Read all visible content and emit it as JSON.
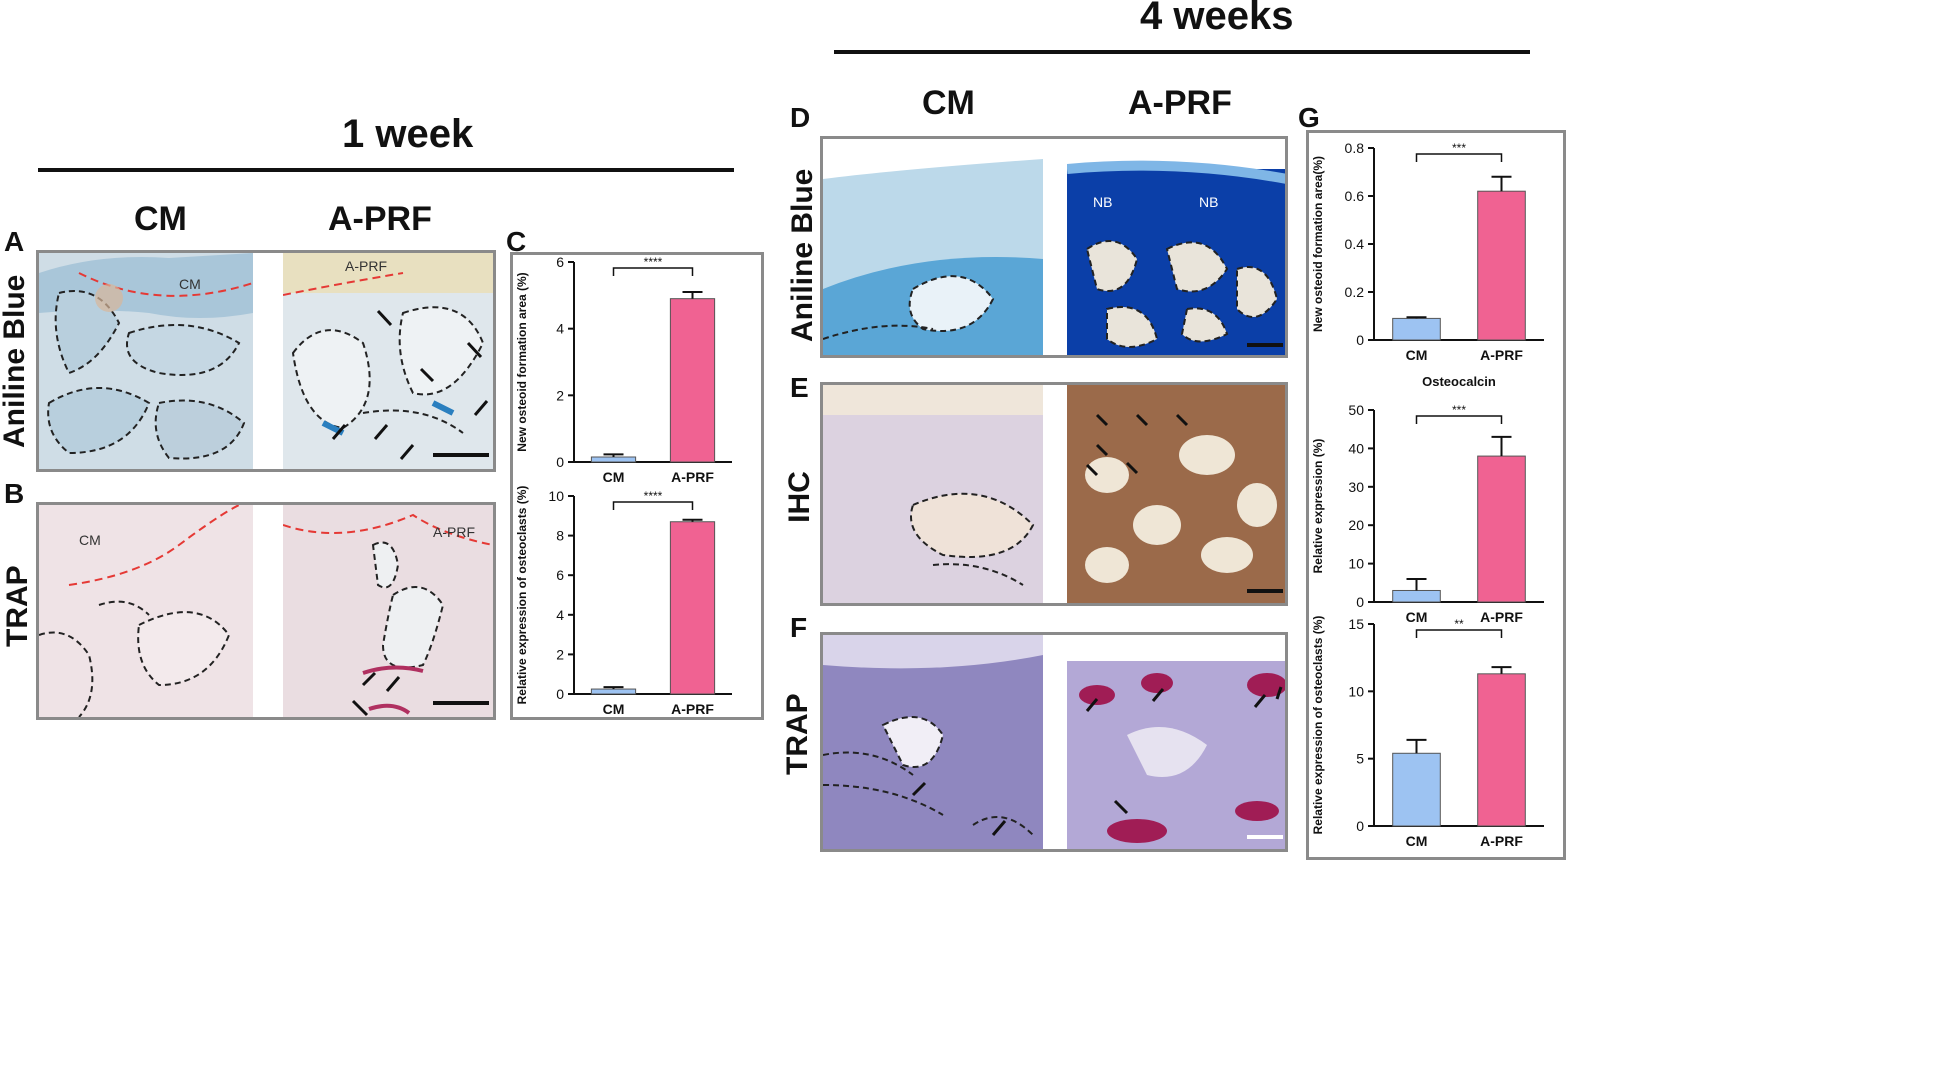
{
  "headers": {
    "week1": "1  week",
    "week4": "4  weeks"
  },
  "columns": {
    "cm": "CM",
    "aprf": "A-PRF"
  },
  "panels": {
    "A": "A",
    "B": "B",
    "C": "C",
    "D": "D",
    "E": "E",
    "F": "F",
    "G": "G"
  },
  "rows": {
    "aniline": "Aniline Blue",
    "trap": "TRAP",
    "ihc": "IHC"
  },
  "image_labels": {
    "cm": "CM",
    "aprf": "A-PRF",
    "nb": "NB"
  },
  "colors": {
    "cm_bar": "#9dc3f2",
    "aprf_bar": "#f06292",
    "frame": "#8a8a8a",
    "aniline": "#2a7fbf",
    "trap": "#b03060",
    "ihc": "#8b5a3c"
  },
  "chart_data": [
    {
      "id": "C-top",
      "type": "bar",
      "categories": [
        "CM",
        "A-PRF"
      ],
      "values": [
        0.15,
        4.9
      ],
      "errors": [
        0.08,
        0.2
      ],
      "ylabel": "New osteoid formation area (%)",
      "xlabel": "",
      "ylim": [
        0,
        6
      ],
      "yticks": [
        0,
        2,
        4,
        6
      ],
      "significance": "****",
      "title": ""
    },
    {
      "id": "C-bottom",
      "type": "bar",
      "categories": [
        "CM",
        "A-PRF"
      ],
      "values": [
        0.25,
        8.7
      ],
      "errors": [
        0.1,
        0.1
      ],
      "ylabel": "Relative expression of osteoclasts (%)",
      "xlabel": "",
      "ylim": [
        0,
        10
      ],
      "yticks": [
        0,
        2,
        4,
        6,
        8,
        10
      ],
      "significance": "****",
      "title": ""
    },
    {
      "id": "G-top",
      "type": "bar",
      "categories": [
        "CM",
        "A-PRF"
      ],
      "values": [
        0.09,
        0.62
      ],
      "errors": [
        0.005,
        0.06
      ],
      "ylabel": "New osteoid formation area(%)",
      "xlabel": "",
      "ylim": [
        0,
        0.8
      ],
      "yticks": [
        0,
        0.2,
        0.4,
        0.6,
        0.8
      ],
      "significance": "***",
      "title": ""
    },
    {
      "id": "G-mid",
      "type": "bar",
      "categories": [
        "CM",
        "A-PRF"
      ],
      "values": [
        3,
        38
      ],
      "errors": [
        3,
        5
      ],
      "ylabel": "Relative expression (%)",
      "xlabel": "",
      "ylim": [
        0,
        50
      ],
      "yticks": [
        0,
        10,
        20,
        30,
        40,
        50
      ],
      "significance": "***",
      "title": "Osteocalcin"
    },
    {
      "id": "G-bottom",
      "type": "bar",
      "categories": [
        "CM",
        "A-PRF"
      ],
      "values": [
        5.4,
        11.3
      ],
      "errors": [
        1,
        0.5
      ],
      "ylabel": "Relative expression of osteoclasts (%)",
      "xlabel": "",
      "ylim": [
        0,
        15
      ],
      "yticks": [
        0,
        5,
        10,
        15
      ],
      "significance": "**",
      "title": ""
    }
  ]
}
